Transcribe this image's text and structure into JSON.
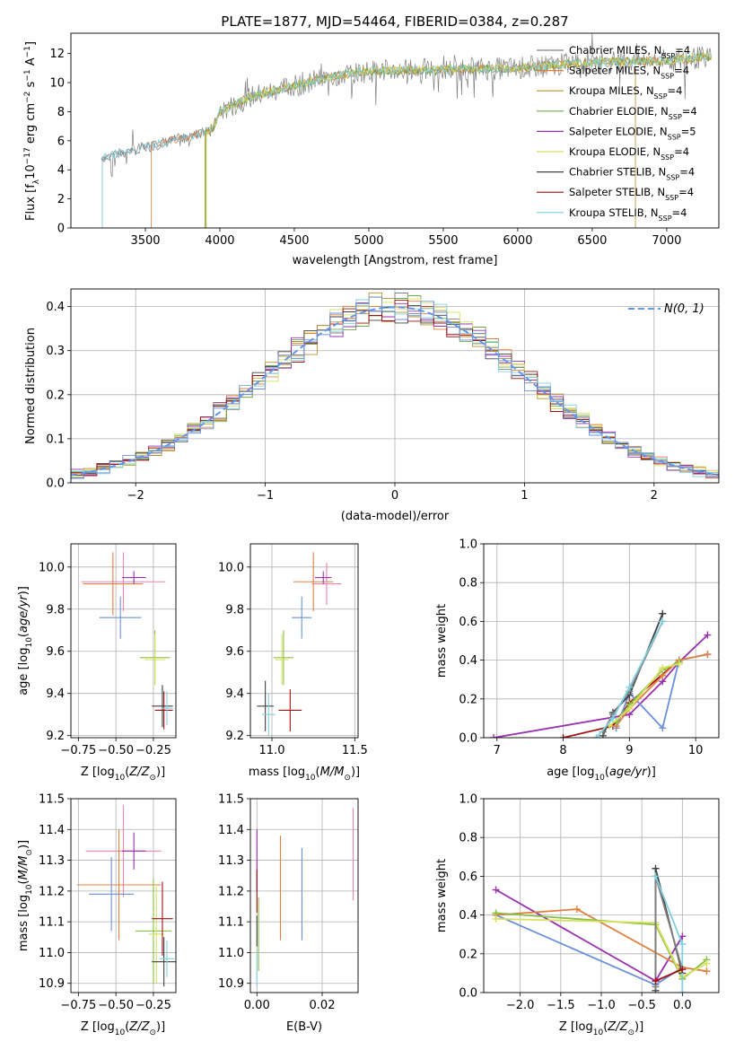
{
  "figure": {
    "title": "PLATE=1877, MJD=54464, FIBERID=0384, z=0.287"
  },
  "colors": {
    "chabrier_miles": "#808080",
    "salpeter_miles": "#e08040",
    "kroupa_miles": "#b89030",
    "chabrier_elodie": "#70a850",
    "salpeter_elodie": "#9930b0",
    "kroupa_elodie": "#d8e060",
    "chabrier_stelib": "#404040",
    "salpeter_stelib": "#a01010",
    "kroupa_stelib": "#80d0e0",
    "normal_curve": "#6495ed",
    "pink": "#ee82b0",
    "blue": "#6a8fdc",
    "green": "#88c040"
  },
  "chart_data": [
    {
      "id": "spectrum",
      "type": "line",
      "xlabel": "wavelength [Angstrom, rest frame]",
      "ylabel": "Flux [f_λ10^-17 erg cm^-2 s^-1 A^-1]",
      "xlim": [
        3000,
        7350
      ],
      "ylim": [
        0,
        13.4
      ],
      "xticks": [
        3500,
        4000,
        4500,
        5000,
        5500,
        6000,
        6500,
        7000
      ],
      "yticks": [
        0,
        2,
        4,
        6,
        8,
        10,
        12
      ],
      "legend_position": "top-right",
      "legend": [
        {
          "name": "Chabrier MILES, N",
          "sub": "SSP",
          "suffix": "=4",
          "color": "#808080"
        },
        {
          "name": "Salpeter MILES, N",
          "sub": "SSP",
          "suffix": "=4",
          "color": "#e08040"
        },
        {
          "name": "Kroupa MILES, N",
          "sub": "SSP",
          "suffix": "=4",
          "color": "#b89030"
        },
        {
          "name": "Chabrier ELODIE, N",
          "sub": "SSP",
          "suffix": "=4",
          "color": "#70a850"
        },
        {
          "name": "Salpeter ELODIE, N",
          "sub": "SSP",
          "suffix": "=5",
          "color": "#9930b0"
        },
        {
          "name": "Kroupa ELODIE, N",
          "sub": "SSP",
          "suffix": "=4",
          "color": "#d8e060"
        },
        {
          "name": "Chabrier STELIB, N",
          "sub": "SSP",
          "suffix": "=4",
          "color": "#404040"
        },
        {
          "name": "Salpeter STELIB, N",
          "sub": "SSP",
          "suffix": "=4",
          "color": "#a01010"
        },
        {
          "name": "Kroupa STELIB, N",
          "sub": "SSP",
          "suffix": "=4",
          "color": "#80d0e0"
        }
      ],
      "continuum": [
        [
          3200,
          4.8
        ],
        [
          3400,
          5.3
        ],
        [
          3600,
          5.8
        ],
        [
          3800,
          6.3
        ],
        [
          3950,
          6.8
        ],
        [
          4000,
          8.0
        ],
        [
          4200,
          9.0
        ],
        [
          4500,
          9.8
        ],
        [
          4800,
          10.5
        ],
        [
          5000,
          10.8
        ],
        [
          5500,
          10.9
        ],
        [
          6000,
          11.0
        ],
        [
          6500,
          11.4
        ],
        [
          7000,
          11.5
        ],
        [
          7300,
          11.8
        ]
      ],
      "model_starts": [
        {
          "color": "#808080",
          "start": 3210
        },
        {
          "color": "#e08040",
          "start": 3540
        },
        {
          "color": "#b89030",
          "start": 3900
        },
        {
          "color": "#70a850",
          "start": 3905
        },
        {
          "color": "#d8e060",
          "start": 3910
        },
        {
          "color": "#80d0e0",
          "start": 3210
        }
      ]
    },
    {
      "id": "residuals",
      "type": "histogram",
      "xlabel": "(data-model)/error",
      "ylabel": "Normed distribution",
      "xlim": [
        -2.5,
        2.5
      ],
      "ylim": [
        0,
        0.44
      ],
      "xticks": [
        -2,
        -1,
        0,
        1,
        2
      ],
      "yticks": [
        0.0,
        0.1,
        0.2,
        0.3,
        0.4
      ],
      "grid": true,
      "legend_position": "top-right",
      "legend": [
        {
          "name": "N(0, 1)",
          "color": "#6495ed",
          "dashed": true
        }
      ],
      "bin_width": 0.1,
      "bin_start": -2.5,
      "series_colors": [
        "#808080",
        "#e08040",
        "#b89030",
        "#70a850",
        "#9930b0",
        "#d8e060",
        "#404040",
        "#a01010",
        "#80d0e0",
        "#6a8fdc"
      ]
    },
    {
      "id": "age_vs_Z",
      "type": "errorbar",
      "xlabel": "Z [log10(Z/Z⊙)]",
      "ylabel": "age [log10(age/yr)]",
      "xlim": [
        -0.8,
        -0.1
      ],
      "ylim": [
        9.19,
        10.11
      ],
      "xticks": [
        -0.75,
        -0.5,
        -0.25
      ],
      "xticklabels": [
        "−0.75",
        "−0.50",
        "−0.25"
      ],
      "yticks": [
        9.2,
        9.4,
        9.6,
        9.8,
        10.0
      ],
      "grid": true,
      "points": [
        {
          "x": -0.52,
          "xerr": 0.2,
          "y": 9.92,
          "yerr": 0.15,
          "color": "#e08040"
        },
        {
          "x": -0.45,
          "xerr": 0.28,
          "y": 9.93,
          "yerr": 0.14,
          "color": "#ee82b0"
        },
        {
          "x": -0.38,
          "xerr": 0.08,
          "y": 9.95,
          "yerr": 0.03,
          "color": "#9930b0"
        },
        {
          "x": -0.47,
          "xerr": 0.14,
          "y": 9.76,
          "yerr": 0.1,
          "color": "#6a8fdc"
        },
        {
          "x": -0.24,
          "xerr": 0.1,
          "y": 9.57,
          "yerr": 0.13,
          "color": "#88c040"
        },
        {
          "x": -0.24,
          "xerr": 0.07,
          "y": 9.56,
          "yerr": 0.12,
          "color": "#d8e060"
        },
        {
          "x": -0.19,
          "xerr": 0.07,
          "y": 9.34,
          "yerr": 0.1,
          "color": "#404040"
        },
        {
          "x": -0.18,
          "xerr": 0.06,
          "y": 9.32,
          "yerr": 0.09,
          "color": "#a01010"
        },
        {
          "x": -0.16,
          "xerr": 0.04,
          "y": 9.33,
          "yerr": 0.08,
          "color": "#80d0e0"
        }
      ]
    },
    {
      "id": "age_vs_mass",
      "type": "errorbar",
      "xlabel": "mass [log10(M/M⊙)]",
      "xlim": [
        10.87,
        11.52
      ],
      "ylim": [
        9.19,
        10.11
      ],
      "xticks": [
        11.0,
        11.5
      ],
      "yticks": [
        9.2,
        9.4,
        9.6,
        9.8,
        10.0
      ],
      "grid": true,
      "points": [
        {
          "x": 11.25,
          "xerr": 0.12,
          "y": 9.93,
          "yerr": 0.14,
          "color": "#e08040"
        },
        {
          "x": 11.33,
          "xerr": 0.09,
          "y": 9.92,
          "yerr": 0.1,
          "color": "#ee82b0"
        },
        {
          "x": 11.31,
          "xerr": 0.05,
          "y": 9.95,
          "yerr": 0.03,
          "color": "#9930b0"
        },
        {
          "x": 11.18,
          "xerr": 0.06,
          "y": 9.76,
          "yerr": 0.1,
          "color": "#6a8fdc"
        },
        {
          "x": 11.07,
          "xerr": 0.06,
          "y": 9.57,
          "yerr": 0.13,
          "color": "#88c040"
        },
        {
          "x": 11.06,
          "xerr": 0.04,
          "y": 9.56,
          "yerr": 0.12,
          "color": "#d8e060"
        },
        {
          "x": 10.96,
          "xerr": 0.05,
          "y": 9.34,
          "yerr": 0.12,
          "color": "#404040"
        },
        {
          "x": 11.11,
          "xerr": 0.07,
          "y": 9.32,
          "yerr": 0.1,
          "color": "#a01010"
        },
        {
          "x": 10.98,
          "xerr": 0.04,
          "y": 9.3,
          "yerr": 0.1,
          "color": "#80d0e0"
        }
      ]
    },
    {
      "id": "weight_vs_age",
      "type": "line",
      "xlabel": "age [log10(age/yr)]",
      "ylabel": "mass weight",
      "xlim": [
        6.8,
        10.35
      ],
      "ylim": [
        0,
        1.0
      ],
      "xticks": [
        7,
        8,
        9,
        10
      ],
      "yticks": [
        0.0,
        0.2,
        0.4,
        0.6,
        0.8,
        1.0
      ],
      "grid": true,
      "series": [
        {
          "color": "#9930b0",
          "points": [
            [
              6.95,
              0.0
            ],
            [
              9.0,
              0.12
            ],
            [
              9.5,
              0.29
            ],
            [
              9.75,
              0.39
            ],
            [
              10.18,
              0.53
            ]
          ]
        },
        {
          "color": "#a01010",
          "points": [
            [
              8.0,
              0.0
            ],
            [
              8.75,
              0.06
            ],
            [
              9.0,
              0.18
            ],
            [
              9.75,
              0.4
            ]
          ]
        },
        {
          "color": "#6a8fdc",
          "points": [
            [
              8.8,
              0.05
            ],
            [
              9.0,
              0.23
            ],
            [
              9.5,
              0.05
            ],
            [
              9.75,
              0.4
            ],
            [
              10.18,
              0.43
            ]
          ]
        },
        {
          "color": "#e08040",
          "points": [
            [
              8.8,
              0.06
            ],
            [
              9.0,
              0.15
            ],
            [
              9.5,
              0.32
            ],
            [
              9.75,
              0.4
            ],
            [
              10.18,
              0.43
            ]
          ]
        },
        {
          "color": "#88c040",
          "points": [
            [
              8.8,
              0.08
            ],
            [
              9.0,
              0.17
            ],
            [
              9.5,
              0.35
            ],
            [
              9.75,
              0.39
            ]
          ]
        },
        {
          "color": "#d8e060",
          "points": [
            [
              8.7,
              0.06
            ],
            [
              9.0,
              0.15
            ],
            [
              9.5,
              0.36
            ],
            [
              9.75,
              0.38
            ]
          ]
        },
        {
          "color": "#404040",
          "points": [
            [
              8.6,
              0.01
            ],
            [
              8.75,
              0.13
            ],
            [
              9.0,
              0.22
            ],
            [
              9.5,
              0.64
            ]
          ]
        },
        {
          "color": "#808080",
          "points": [
            [
              8.6,
              0.03
            ],
            [
              8.75,
              0.12
            ],
            [
              9.0,
              0.24
            ],
            [
              9.5,
              0.6
            ]
          ]
        },
        {
          "color": "#80d0e0",
          "points": [
            [
              8.5,
              0.0
            ],
            [
              8.75,
              0.1
            ],
            [
              9.0,
              0.26
            ],
            [
              9.5,
              0.6
            ]
          ]
        }
      ]
    },
    {
      "id": "mass_vs_Z",
      "type": "errorbar",
      "xlabel": "Z [log10(Z/Z⊙)]",
      "ylabel": "mass [log10(M/M⊙)]",
      "xlim": [
        -0.8,
        -0.1
      ],
      "ylim": [
        10.87,
        11.5
      ],
      "xticks": [
        -0.75,
        -0.5,
        -0.25
      ],
      "xticklabels": [
        "−0.75",
        "−0.50",
        "−0.25"
      ],
      "yticks": [
        10.9,
        11.0,
        11.1,
        11.2,
        11.3,
        11.4,
        11.5
      ],
      "grid": true,
      "points": [
        {
          "x": -0.45,
          "xerr": 0.25,
          "y": 11.33,
          "yerr": 0.15,
          "color": "#ee82b0"
        },
        {
          "x": -0.38,
          "xerr": 0.08,
          "y": 11.33,
          "yerr": 0.06,
          "color": "#9930b0"
        },
        {
          "x": -0.48,
          "xerr": 0.28,
          "y": 11.22,
          "yerr": 0.18,
          "color": "#e08040"
        },
        {
          "x": -0.53,
          "xerr": 0.15,
          "y": 11.19,
          "yerr": 0.12,
          "color": "#6a8fdc"
        },
        {
          "x": -0.25,
          "xerr": 0.12,
          "y": 11.07,
          "yerr": 0.17,
          "color": "#88c040"
        },
        {
          "x": -0.23,
          "xerr": 0.05,
          "y": 11.06,
          "yerr": 0.16,
          "color": "#d8e060"
        },
        {
          "x": -0.19,
          "xerr": 0.07,
          "y": 11.11,
          "yerr": 0.12,
          "color": "#a01010"
        },
        {
          "x": -0.18,
          "xerr": 0.08,
          "y": 10.97,
          "yerr": 0.08,
          "color": "#404040"
        },
        {
          "x": -0.16,
          "xerr": 0.05,
          "y": 10.98,
          "yerr": 0.06,
          "color": "#80d0e0"
        }
      ]
    },
    {
      "id": "mass_vs_ebv",
      "type": "errorbar",
      "xlabel": "E(B-V)",
      "xlim": [
        -0.002,
        0.031
      ],
      "ylim": [
        10.87,
        11.5
      ],
      "xticks": [
        0.0,
        0.02
      ],
      "xticklabels": [
        "0.00",
        "0.02"
      ],
      "yticks": [
        10.9,
        11.0,
        11.1,
        11.2,
        11.3,
        11.4,
        11.5
      ],
      "grid": true,
      "points": [
        {
          "x": 0.0,
          "xerr": 0,
          "y": 11.3,
          "yerr": 0.1,
          "color": "#9930b0"
        },
        {
          "x": 0.0,
          "xerr": 0,
          "y": 11.2,
          "yerr": 0.07,
          "color": "#a01010"
        },
        {
          "x": 0.0,
          "xerr": 0,
          "y": 11.07,
          "yerr": 0.05,
          "color": "#404040"
        },
        {
          "x": 0.0,
          "xerr": 0,
          "y": 10.95,
          "yerr": 0.06,
          "color": "#80d0e0"
        },
        {
          "x": 0.0005,
          "xerr": 0,
          "y": 11.06,
          "yerr": 0.12,
          "color": "#88c040"
        },
        {
          "x": 0.0072,
          "xerr": 0,
          "y": 11.21,
          "yerr": 0.17,
          "color": "#e08040"
        },
        {
          "x": 0.0138,
          "xerr": 0,
          "y": 11.19,
          "yerr": 0.15,
          "color": "#6a8fdc"
        },
        {
          "x": 0.0295,
          "xerr": 0,
          "y": 11.32,
          "yerr": 0.15,
          "color": "#ee82b0"
        }
      ]
    },
    {
      "id": "weight_vs_Z",
      "type": "line",
      "xlabel": "Z [log10(Z/Z⊙)]",
      "ylabel": "mass weight",
      "xlim": [
        -2.45,
        0.45
      ],
      "ylim": [
        0,
        1.0
      ],
      "xticks": [
        -2.0,
        -1.5,
        -1.0,
        -0.5,
        0.0
      ],
      "xticklabels": [
        "−2.0",
        "−1.5",
        "−1.0",
        "−0.5",
        "0.0"
      ],
      "yticks": [
        0.0,
        0.2,
        0.4,
        0.6,
        0.8,
        1.0
      ],
      "grid": true,
      "series": [
        {
          "color": "#9930b0",
          "points": [
            [
              -2.3,
              0.53
            ],
            [
              -0.33,
              0.06
            ],
            [
              0.0,
              0.29
            ]
          ]
        },
        {
          "color": "#6a8fdc",
          "points": [
            [
              -2.3,
              0.4
            ],
            [
              -0.33,
              0.04
            ],
            [
              0.0,
              0.13
            ]
          ]
        },
        {
          "color": "#e08040",
          "points": [
            [
              -2.3,
              0.4
            ],
            [
              -1.3,
              0.43
            ],
            [
              0.0,
              0.13
            ],
            [
              0.3,
              0.11
            ]
          ]
        },
        {
          "color": "#88c040",
          "points": [
            [
              -2.3,
              0.41
            ],
            [
              -0.33,
              0.35
            ],
            [
              0.0,
              0.07
            ],
            [
              0.3,
              0.17
            ]
          ]
        },
        {
          "color": "#d8e060",
          "points": [
            [
              -2.3,
              0.38
            ],
            [
              -0.33,
              0.36
            ],
            [
              0.0,
              0.08
            ],
            [
              0.3,
              0.15
            ]
          ]
        },
        {
          "color": "#404040",
          "points": [
            [
              -0.33,
              0.01
            ],
            [
              -0.33,
              0.64
            ],
            [
              0.0,
              0.1
            ]
          ]
        },
        {
          "color": "#808080",
          "points": [
            [
              -0.33,
              0.03
            ],
            [
              -0.33,
              0.6
            ],
            [
              0.0,
              0.12
            ]
          ]
        },
        {
          "color": "#80d0e0",
          "points": [
            [
              -0.33,
              0.6
            ],
            [
              0.0,
              0.25
            ],
            [
              0.0,
              0.0
            ]
          ]
        },
        {
          "color": "#a01010",
          "points": [
            [
              -0.33,
              0.06
            ],
            [
              0.0,
              0.12
            ]
          ]
        }
      ]
    }
  ]
}
